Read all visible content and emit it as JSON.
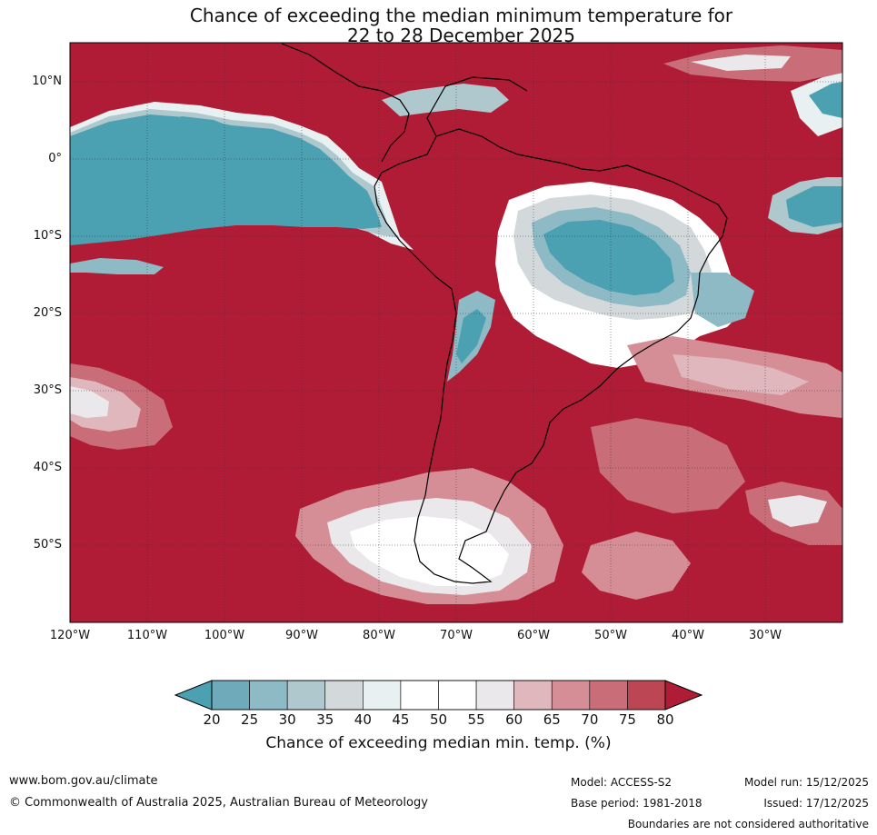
{
  "title": {
    "line1": "Chance of exceeding the median minimum temperature for",
    "line2": "22 to 28 December 2025"
  },
  "map": {
    "lat_labels": [
      "10°N",
      "0°",
      "10°S",
      "20°S",
      "30°S",
      "40°S",
      "50°S"
    ],
    "lon_labels": [
      "120°W",
      "110°W",
      "100°W",
      "90°W",
      "80°W",
      "70°W",
      "60°W",
      "50°W",
      "40°W",
      "30°W"
    ],
    "extent": {
      "lon_min": -120,
      "lon_max": -20,
      "lat_min": -60,
      "lat_max": 15
    }
  },
  "colorbar": {
    "ticks": [
      "20",
      "25",
      "30",
      "35",
      "40",
      "45",
      "50",
      "55",
      "60",
      "65",
      "70",
      "75",
      "80"
    ],
    "colors": [
      "#4ba0b1",
      "#6eaab9",
      "#8ebac6",
      "#aec8ce",
      "#d3d9db",
      "#e9f0f2",
      "#ffffff",
      "#ffffff",
      "#eae8ea",
      "#dfb7bc",
      "#d58e96",
      "#c96e79",
      "#bd4655"
    ],
    "under_color": "#4ba0b1",
    "over_color": "#b01c36",
    "label": "Chance of exceeding median min. temp. (%)"
  },
  "footer": {
    "url": "www.bom.gov.au/climate",
    "copyright": "© Commonwealth of Australia 2025, Australian Bureau of Meteorology",
    "model": "Model: ACCESS-S2",
    "base_period": "Base period: 1981-2018",
    "model_run": "Model run: 15/12/2025",
    "issued": "Issued: 17/12/2025",
    "disclaimer": "Boundaries are not considered authoritative"
  }
}
